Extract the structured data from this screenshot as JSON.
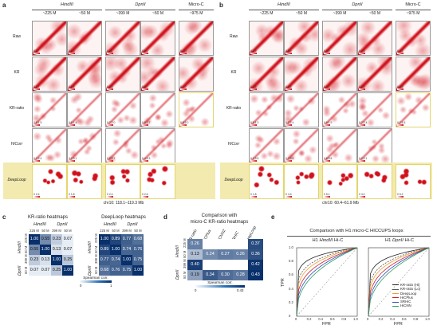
{
  "panel_labels": {
    "a": "a",
    "b": "b",
    "c": "c",
    "d": "d",
    "e": "e"
  },
  "enzymes": {
    "hind": "HindIII",
    "dpn": "DpnII",
    "micro": "Micro-C"
  },
  "depths": {
    "d225": "~225 M",
    "d50": "~50 M",
    "d399": "~399 M",
    "d50b": "~50 M",
    "d975": "~975 M"
  },
  "rows": [
    "Raw",
    "KR",
    "KR-ratio",
    "HiCorr",
    "DeepLoop"
  ],
  "tile_scale_a": [
    [
      "0 17",
      "0 8.3",
      "0 26",
      "0 6.0",
      "0 114"
    ],
    [
      "0 0.7",
      "0 1.8",
      "0 3.3",
      "0 0.7",
      "0 1.0"
    ],
    [
      "0.6 1.9",
      "0.6 1.4",
      "0.7 2.0",
      "0.5 1.7",
      "0.8 2.0"
    ],
    [
      "0.2 2.4",
      "0.2 3.1",
      "0.2 2.7",
      "0.4 5.3",
      ""
    ],
    [
      "0 2.4",
      "0 1.8",
      "0 2.4",
      "0 2.6",
      ""
    ]
  ],
  "tile_scale_b": [
    [
      "0 4.9",
      "0 5.9",
      "0 9.9",
      "0 7.3",
      "0 4.4"
    ],
    [
      "0 2.6",
      "0 4.6",
      "0 3.2",
      "0 2.0",
      "0 6.8"
    ],
    [
      "0.5 1.3",
      "0.2 2.4",
      "0.6 1.9",
      "0.7 2.4",
      "0.7 1.6"
    ],
    [
      "0.2 3.5",
      "0.3 3.9",
      "0.6 3.8",
      "0.2 2.1",
      ""
    ],
    [
      "0 1.8",
      "0 4.3",
      "0 5.1",
      "0 4.0",
      "0 5.2"
    ]
  ],
  "caption_a": "chr10: 118.1–119.3 Mb",
  "caption_b": "chr10: 60.4–61.9 Mb",
  "heatmap_c1": {
    "title": "KR-ratio heatmaps",
    "group_labels": [
      "HindIII",
      "DpnII"
    ],
    "col_labels": [
      "225 M",
      "50 M",
      "399 M",
      "50 M"
    ],
    "row_labels": [
      "225 M",
      "50 M",
      "399 M",
      "50 M"
    ],
    "values": [
      [
        "1.00",
        "0.55",
        "0.23",
        "0.07"
      ],
      [
        "0.55",
        "1.00",
        "0.13",
        "0.07"
      ],
      [
        "0.23",
        "0.13",
        "1.00",
        "0.25"
      ],
      [
        "0.07",
        "0.07",
        "0.25",
        "1.00"
      ]
    ],
    "scale_title": "Spearman corr.",
    "scale_min": "0",
    "scale_max": "1"
  },
  "heatmap_c2": {
    "title": "DeepLoop heatmaps",
    "values": [
      [
        "1.00",
        "0.89",
        "0.77",
        "0.68"
      ],
      [
        "0.89",
        "1.00",
        "0.74",
        "0.76"
      ],
      [
        "0.77",
        "0.74",
        "1.00",
        "0.75"
      ],
      [
        "0.68",
        "0.76",
        "0.75",
        "1.00"
      ]
    ]
  },
  "heatmap_d": {
    "title_line1": "Comparison with",
    "title_line2": "micro-C KR-ratio heatmaps",
    "col_labels": [
      "KR-ratio",
      "HiCPlus",
      "HiCNN2",
      "SRHiC",
      "DeepLoop"
    ],
    "row_labels": [
      "225 M",
      "50 M",
      "399 M",
      "50 M"
    ],
    "values": [
      [
        "0.26",
        "",
        "",
        "",
        "0.37"
      ],
      [
        "0.13",
        "0.24",
        "0.27",
        "0.26",
        "0.36"
      ],
      [
        "0.40",
        "",
        "",
        "",
        "0.42"
      ],
      [
        "0.19",
        "0.34",
        "0.30",
        "0.28",
        "0.43"
      ]
    ],
    "scale_title": "Spearman corr.",
    "scale_min": "0",
    "scale_max": "0.43"
  },
  "roc": {
    "title": "Comparison with H1 micro-C HICCUPS loops",
    "subtitle_left_pre": "H1 ",
    "subtitle_left_enz": "HindIII",
    "subtitle_left_post": " Hi-C",
    "subtitle_right_pre": "H1 ",
    "subtitle_right_enz": "DpnII",
    "subtitle_right_post": " Hi-C",
    "xlabel": "FPR",
    "ylabel": "TPR",
    "yticks": [
      "1.0",
      "0.8",
      "0.6",
      "0.4",
      "0.2",
      "0"
    ],
    "xticks": [
      "0",
      "0.2",
      "0.4",
      "0.6",
      "0.8",
      "1.0"
    ],
    "legend": [
      {
        "label": "KR-ratio (Hi)",
        "color": "#222222"
      },
      {
        "label": "KR-ratio (Lo)",
        "color": "#555555"
      },
      {
        "label": "DeepLoop",
        "color": "#f0a030"
      },
      {
        "label": "HiCPlus",
        "color": "#d02030"
      },
      {
        "label": "SRHiC",
        "color": "#3050c0"
      },
      {
        "label": "HiCNN",
        "color": "#30a060"
      }
    ]
  },
  "colors": {
    "contact_red": "#d0101a",
    "highlight": "#f3eab0",
    "heat_blue": "#2b73b8"
  }
}
